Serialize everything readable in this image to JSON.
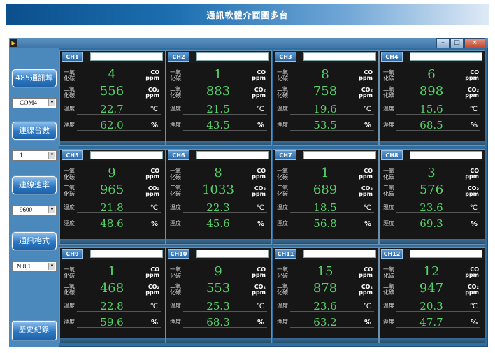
{
  "banner_title": "通訊軟體介面圖多台",
  "window_buttons": {
    "minimize": "–",
    "maximize": "□",
    "close": "×"
  },
  "left_panel": {
    "port_button": "485通訊埠",
    "port_value": "COM4",
    "count_button": "連線台數",
    "count_value": "1",
    "rate_button": "連線速率",
    "rate_value": "9600",
    "format_button": "通訊格式",
    "format_value": "N,8,1",
    "history_button": "歷史紀錄"
  },
  "labels": {
    "co_line1": "一氧",
    "co_line2": "化碳",
    "co2_line1": "二氧",
    "co2_line2": "化碳",
    "temp": "溫度",
    "humid": "溼度",
    "co_unit": "CO",
    "ppm": "ppm",
    "co2_unit": "CO₂",
    "temp_unit": "℃",
    "humid_unit": "%"
  },
  "channels": [
    {
      "id": "CH1",
      "co": "4",
      "co2": "556",
      "temp": "22.7",
      "humid": "62.0"
    },
    {
      "id": "CH2",
      "co": "1",
      "co2": "883",
      "temp": "21.5",
      "humid": "43.5"
    },
    {
      "id": "CH3",
      "co": "8",
      "co2": "758",
      "temp": "19.6",
      "humid": "53.5"
    },
    {
      "id": "CH4",
      "co": "6",
      "co2": "898",
      "temp": "15.6",
      "humid": "68.5"
    },
    {
      "id": "CH5",
      "co": "9",
      "co2": "965",
      "temp": "21.8",
      "humid": "48.6"
    },
    {
      "id": "CH6",
      "co": "8",
      "co2": "1033",
      "temp": "22.3",
      "humid": "45.6"
    },
    {
      "id": "CH7",
      "co": "1",
      "co2": "689",
      "temp": "18.5",
      "humid": "56.8"
    },
    {
      "id": "CH8",
      "co": "3",
      "co2": "576",
      "temp": "23.6",
      "humid": "69.3"
    },
    {
      "id": "CH9",
      "co": "1",
      "co2": "468",
      "temp": "22.8",
      "humid": "59.6"
    },
    {
      "id": "CH10",
      "co": "9",
      "co2": "553",
      "temp": "25.3",
      "humid": "68.3"
    },
    {
      "id": "CH11",
      "co": "15",
      "co2": "878",
      "temp": "23.6",
      "humid": "63.2"
    },
    {
      "id": "CH12",
      "co": "12",
      "co2": "947",
      "temp": "20.3",
      "humid": "47.7"
    }
  ]
}
